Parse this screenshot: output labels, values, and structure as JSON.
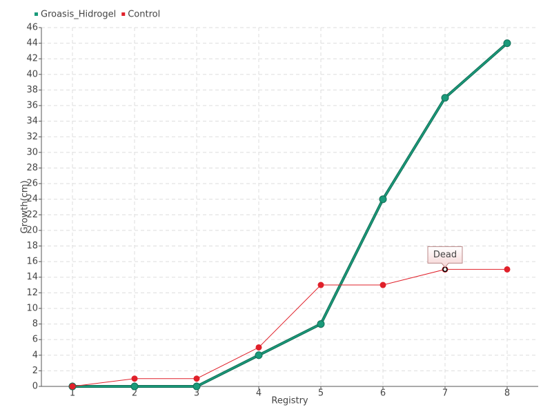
{
  "chart_data": {
    "type": "line",
    "x_label": "Registry",
    "y_label": "Growth(cm)",
    "categories": [
      "1",
      "2",
      "3",
      "4",
      "5",
      "6",
      "7",
      "8"
    ],
    "series": [
      {
        "name": "Groasis_Hidrogel",
        "color": "#1a9a7a",
        "values": [
          0,
          0,
          0,
          4,
          8,
          24,
          37,
          44
        ]
      },
      {
        "name": "Control",
        "color": "#e0202a",
        "values": [
          0,
          1,
          1,
          5,
          13,
          13,
          15,
          15
        ]
      }
    ],
    "ylim": [
      0,
      46
    ],
    "yticks": [
      0,
      2,
      4,
      6,
      8,
      10,
      12,
      14,
      16,
      18,
      20,
      22,
      24,
      26,
      28,
      30,
      32,
      34,
      36,
      38,
      40,
      42,
      44,
      46
    ],
    "grid": true,
    "legend": "top-left",
    "annotations": [
      {
        "text": "Dead",
        "x": "7",
        "y": 15
      }
    ]
  }
}
